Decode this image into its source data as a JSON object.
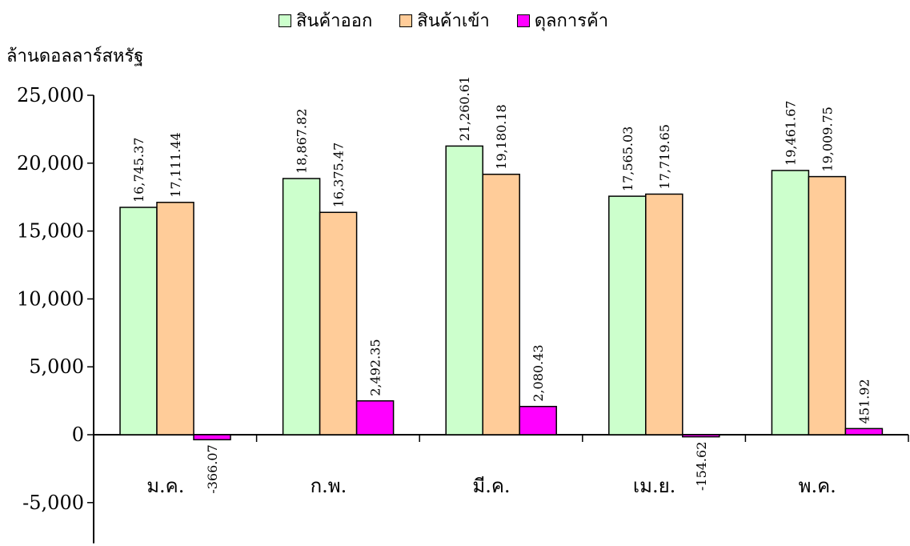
{
  "chart_data": {
    "type": "bar",
    "ylabel": "ล้านดอลลาร์สหรัฐ",
    "categories": [
      "ม.ค.",
      "ก.พ.",
      "มี.ค.",
      "เม.ย.",
      "พ.ค."
    ],
    "ylim": [
      -8000,
      25000
    ],
    "yticks": [
      -5000,
      0,
      5000,
      10000,
      15000,
      20000,
      25000
    ],
    "ytick_labels": [
      "-5,000",
      "0",
      "5,000",
      "10,000",
      "15,000",
      "20,000",
      "25,000"
    ],
    "series": [
      {
        "name": "สินค้าออก",
        "color": "#ccffcc",
        "values": [
          16745.37,
          18867.82,
          21260.61,
          17565.03,
          19461.67
        ],
        "labels": [
          "16,745.37",
          "18,867.82",
          "21,260.61",
          "17,565.03",
          "19,461.67"
        ]
      },
      {
        "name": "สินค้าเข้า",
        "color": "#ffcc99",
        "values": [
          17111.44,
          16375.47,
          19180.18,
          17719.65,
          19009.75
        ],
        "labels": [
          "17,111.44",
          "16,375.47",
          "19,180.18",
          "17,719.65",
          "19,009.75"
        ]
      },
      {
        "name": "ดุลการค้า",
        "color": "#ff00ff",
        "values": [
          -366.07,
          2492.35,
          2080.43,
          -154.62,
          451.92
        ],
        "labels": [
          "-366.07",
          "2,492.35",
          "2,080.43",
          "-154.62",
          "451.92"
        ]
      }
    ],
    "legend_position": "top",
    "grid": false
  }
}
